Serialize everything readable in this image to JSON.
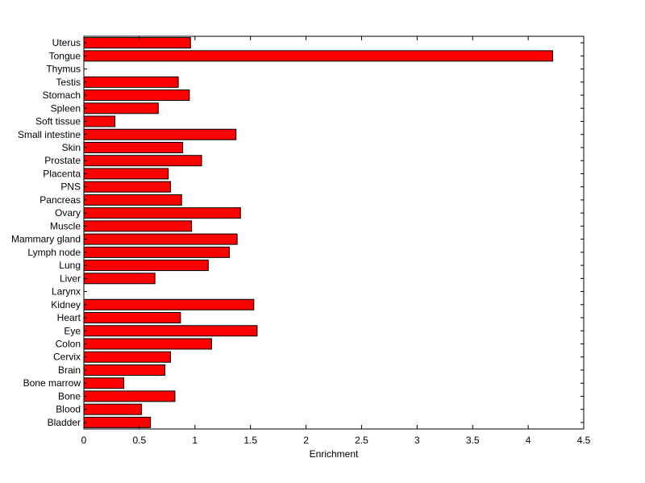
{
  "chart_data": {
    "type": "bar",
    "orientation": "horizontal",
    "title": "",
    "xlabel": "Enrichment",
    "ylabel": "",
    "xlim": [
      0,
      4.5
    ],
    "xticks": [
      0,
      0.5,
      1,
      1.5,
      2,
      2.5,
      3,
      3.5,
      4,
      4.5
    ],
    "xtick_labels": [
      "0",
      "0.5",
      "1",
      "1.5",
      "2",
      "2.5",
      "3",
      "3.5",
      "4",
      "4.5"
    ],
    "grid": false,
    "legend": "none",
    "bar_color": "#ff0000",
    "bar_edge_color": "#000000",
    "categories": [
      "Uterus",
      "Tongue",
      "Thymus",
      "Testis",
      "Stomach",
      "Spleen",
      "Soft tissue",
      "Small intestine",
      "Skin",
      "Prostate",
      "Placenta",
      "PNS",
      "Pancreas",
      "Ovary",
      "Muscle",
      "Mammary gland",
      "Lymph node",
      "Lung",
      "Liver",
      "Larynx",
      "Kidney",
      "Heart",
      "Eye",
      "Colon",
      "Cervix",
      "Brain",
      "Bone marrow",
      "Bone",
      "Blood",
      "Bladder"
    ],
    "values": [
      0.96,
      4.22,
      0.0,
      0.85,
      0.95,
      0.67,
      0.28,
      1.37,
      0.89,
      1.06,
      0.76,
      0.78,
      0.88,
      1.41,
      0.97,
      1.38,
      1.31,
      1.12,
      0.64,
      0.0,
      1.53,
      0.87,
      1.56,
      1.15,
      0.78,
      0.73,
      0.36,
      0.82,
      0.52,
      0.6
    ]
  }
}
